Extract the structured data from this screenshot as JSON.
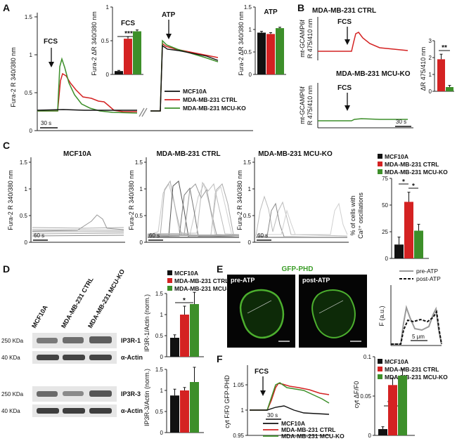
{
  "panels": [
    "A",
    "B",
    "C",
    "D",
    "E",
    "F"
  ],
  "legend": {
    "mcf10a": "MCF10A",
    "ctrl": "MDA-MB-231 CTRL",
    "ko": "MDA-MB-231 MCU-KO"
  },
  "colors": {
    "mcf10a": "#111111",
    "ctrl": "#d42222",
    "ko": "#3d8f2a"
  },
  "panelA": {
    "ylabel": "Fura-2 R 340/380 nm",
    "stim1": "FCS",
    "stim2": "ATP",
    "scale": "30 s",
    "yticks": [
      "0",
      "0.5",
      "1",
      "1.5"
    ],
    "inset_fcs": {
      "title": "FCS",
      "ylabel": "Fura-2 ΔR 340/380 nm",
      "yticks": [
        "0",
        "0.5",
        "1"
      ],
      "sig": "***"
    },
    "inset_atp": {
      "title": "ATP",
      "ylabel": "Fura-2 ΔR 340/380 nm",
      "yticks": [
        "0",
        "0.5",
        "1",
        "1.5"
      ]
    }
  },
  "panelB": {
    "title_ctrl": "MDA-MB-231 CTRL",
    "title_ko": "MDA-MB-231 MCU-KO",
    "ylabel_l1": "mt-GCAMP6f",
    "ylabel_l2": "R 475/410 nm",
    "stim": "FCS",
    "scale": "30 s",
    "bar_ylabel": "ΔR 475/410 nm",
    "bar_yticks": [
      "0",
      "1",
      "2",
      "3"
    ],
    "sig": "**"
  },
  "panelC": {
    "titles": [
      "MCF10A",
      "MDA-MB-231 CTRL",
      "MDA-MB-231 MCU-KO"
    ],
    "ylabel": "Fura-2 R 340/380 nm",
    "yticks": [
      "0",
      "0.5",
      "1",
      "1.5"
    ],
    "scale": "60 s",
    "bar_ylabel_l1": "% of cells with",
    "bar_ylabel_l2": "Ca²⁺ oscillations",
    "bar_yticks": [
      "0",
      "25",
      "50",
      "75"
    ],
    "sig1": "*",
    "sig2": "*"
  },
  "panelD": {
    "lanes": [
      "MCF10A",
      "MDA-MB-231 CTRL",
      "MDA-MB-231 MCU-KO"
    ],
    "mw1": "250 KDa",
    "mw2": "40 KDa",
    "mw3": "250 KDa",
    "mw4": "40 KDa",
    "band1": "IP3R-1",
    "band2": "α-Actin",
    "band3": "IP3R-3",
    "band4": "α-Actin",
    "bar1_ylabel": "IP3R-1/Actin (norm.)",
    "bar2_ylabel": "IP3R-3/Actin (norm.)",
    "yticks": [
      "0",
      "0.5",
      "1",
      "1.5"
    ],
    "sig": "*"
  },
  "panelE": {
    "title": "GFP-PHD",
    "pre": "pre-ATP",
    "post": "post-ATP",
    "ylabel": "F (a.u.)",
    "scale": "5 μm"
  },
  "panelF": {
    "ylabel": "cyt F/F0 GFP-PHD",
    "stim": "FCS",
    "scale": "30 s",
    "yticks": [
      "0.95",
      "1",
      "1.05"
    ],
    "bar_ylabel": "cyt ΔF/F0",
    "bar_yticks": [
      "0",
      "0.05",
      "0.1"
    ],
    "sig": "***"
  },
  "chart_data": [
    {
      "type": "bar",
      "panel": "A-FCS",
      "categories": [
        "MCF10A",
        "MDA-MB-231 CTRL",
        "MDA-MB-231 MCU-KO"
      ],
      "values": [
        0.05,
        0.53,
        0.64
      ],
      "errors": [
        0.01,
        0.03,
        0.02
      ],
      "ylim": [
        0,
        1
      ]
    },
    {
      "type": "bar",
      "panel": "A-ATP",
      "categories": [
        "MCF10A",
        "MDA-MB-231 CTRL",
        "MDA-MB-231 MCU-KO"
      ],
      "values": [
        0.93,
        0.9,
        1.03
      ],
      "errors": [
        0.03,
        0.03,
        0.02
      ],
      "ylim": [
        0,
        1.5
      ]
    },
    {
      "type": "bar",
      "panel": "B",
      "categories": [
        "MDA-MB-231 CTRL",
        "MDA-MB-231 MCU-KO"
      ],
      "values": [
        1.9,
        0.25
      ],
      "errors": [
        0.3,
        0.1
      ],
      "ylim": [
        0,
        3
      ]
    },
    {
      "type": "bar",
      "panel": "C",
      "categories": [
        "MCF10A",
        "MDA-MB-231 CTRL",
        "MDA-MB-231 MCU-KO"
      ],
      "values": [
        13,
        53,
        26
      ],
      "errors": [
        7,
        9,
        6
      ],
      "ylim": [
        0,
        75
      ]
    },
    {
      "type": "bar",
      "panel": "D-IP3R1",
      "categories": [
        "MCF10A",
        "MDA-MB-231 CTRL",
        "MDA-MB-231 MCU-KO"
      ],
      "values": [
        0.45,
        1.0,
        1.25
      ],
      "errors": [
        0.07,
        0.2,
        0.28
      ],
      "ylim": [
        0,
        1.5
      ]
    },
    {
      "type": "bar",
      "panel": "D-IP3R3",
      "categories": [
        "MCF10A",
        "MDA-MB-231 CTRL",
        "MDA-MB-231 MCU-KO"
      ],
      "values": [
        0.88,
        1.0,
        1.2
      ],
      "errors": [
        0.15,
        0.07,
        0.35
      ],
      "ylim": [
        0,
        1.5
      ]
    },
    {
      "type": "bar",
      "panel": "F",
      "categories": [
        "MCF10A",
        "MDA-MB-231 CTRL",
        "MDA-MB-231 MCU-KO"
      ],
      "values": [
        0.008,
        0.064,
        0.076
      ],
      "errors": [
        0.003,
        0.009,
        0.008
      ],
      "ylim": [
        0,
        0.1
      ]
    }
  ]
}
